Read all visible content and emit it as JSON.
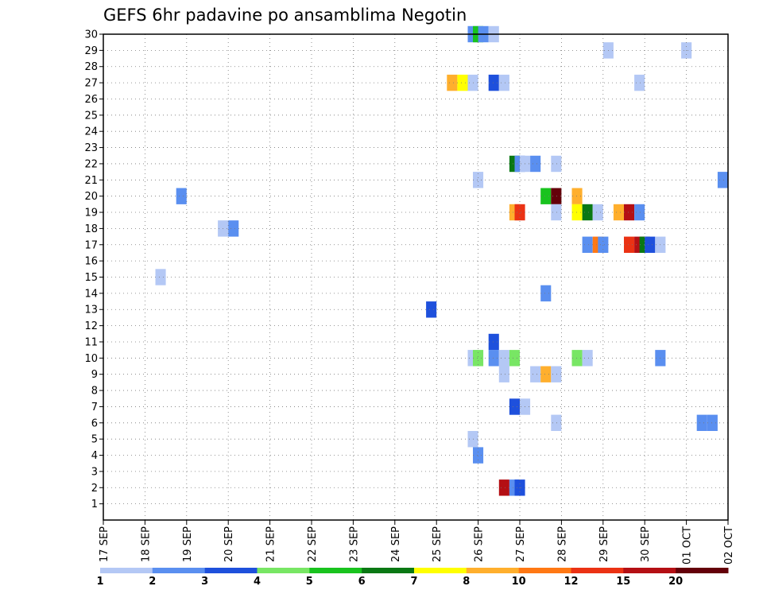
{
  "chart_data": {
    "type": "heatmap",
    "title": "GEFS 6hr padavine po ansamblima Negotin",
    "xlabel": "",
    "ylabel": "",
    "x_tick_labels": [
      "17 SEP",
      "18 SEP",
      "19 SEP",
      "20 SEP",
      "21 SEP",
      "22 SEP",
      "23 SEP",
      "24 SEP",
      "25 SEP",
      "26 SEP",
      "27 SEP",
      "28 SEP",
      "29 SEP",
      "30 SEP",
      "01 OCT",
      "02 OCT"
    ],
    "y_tick_labels": [
      "1",
      "2",
      "3",
      "4",
      "5",
      "6",
      "7",
      "8",
      "9",
      "10",
      "11",
      "12",
      "13",
      "14",
      "15",
      "16",
      "17",
      "18",
      "19",
      "20",
      "21",
      "22",
      "23",
      "24",
      "25",
      "26",
      "27",
      "28",
      "29",
      "30"
    ],
    "ylim": [
      0,
      30
    ],
    "grid": true,
    "time_step_hours": 6,
    "legend": {
      "position": "bottom",
      "labels": [
        "1",
        "2",
        "3",
        "4",
        "5",
        "6",
        "7",
        "8",
        "10",
        "12",
        "15",
        "20"
      ],
      "colors": [
        "#b4c8f5",
        "#5a8ff0",
        "#1e50dc",
        "#78e664",
        "#19c31e",
        "#0a7814",
        "#ffff00",
        "#ffaf2d",
        "#ff7814",
        "#eb3214",
        "#b40f14",
        "#64000a"
      ]
    },
    "cells": [
      {
        "member": 30,
        "date": "26 SEP",
        "hour": "-06",
        "class": 2
      },
      {
        "member": 30,
        "date": "26 SEP",
        "hour": "-00",
        "class": 5
      },
      {
        "member": 30,
        "date": "26 SEP",
        "hour": "+00",
        "class": 2
      },
      {
        "member": 30,
        "date": "26 SEP",
        "hour": "+06",
        "class": 1
      },
      {
        "member": 29,
        "date": "29 SEP",
        "hour": "+00",
        "class": 1
      },
      {
        "member": 29,
        "date": "01 OCT",
        "hour": "-00",
        "class": 1
      },
      {
        "member": 27,
        "date": "25 SEP",
        "hour": "+06",
        "class": 8
      },
      {
        "member": 27,
        "date": "25 SEP",
        "hour": "+12",
        "class": 7
      },
      {
        "member": 27,
        "date": "25 SEP",
        "hour": "+18",
        "class": 1
      },
      {
        "member": 27,
        "date": "26 SEP",
        "hour": "+06",
        "class": 3
      },
      {
        "member": 27,
        "date": "26 SEP",
        "hour": "+12",
        "class": 1
      },
      {
        "member": 27,
        "date": "29 SEP",
        "hour": "+18",
        "class": 1
      },
      {
        "member": 22,
        "date": "26 SEP",
        "hour": "+18",
        "class": 6
      },
      {
        "member": 22,
        "date": "27 SEP",
        "hour": "-00",
        "class": 2
      },
      {
        "member": 22,
        "date": "27 SEP",
        "hour": "+00",
        "class": 1
      },
      {
        "member": 22,
        "date": "27 SEP",
        "hour": "+06",
        "class": 2
      },
      {
        "member": 22,
        "date": "27 SEP",
        "hour": "+18",
        "class": 1
      },
      {
        "member": 21,
        "date": "26 SEP",
        "hour": "-00",
        "class": 1
      },
      {
        "member": 21,
        "date": "01 OCT",
        "hour": "+18",
        "class": 2
      },
      {
        "member": 20,
        "date": "18 SEP",
        "hour": "+18",
        "class": 2
      },
      {
        "member": 20,
        "date": "27 SEP",
        "hour": "+12",
        "class": 5
      },
      {
        "member": 20,
        "date": "27 SEP",
        "hour": "+18",
        "class": 12
      },
      {
        "member": 20,
        "date": "28 SEP",
        "hour": "+06",
        "class": 8
      },
      {
        "member": 19,
        "date": "26 SEP",
        "hour": "+18",
        "class": 8
      },
      {
        "member": 19,
        "date": "27 SEP",
        "hour": "-00",
        "class": 10
      },
      {
        "member": 19,
        "date": "27 SEP",
        "hour": "+18",
        "class": 1
      },
      {
        "member": 19,
        "date": "28 SEP",
        "hour": "+06",
        "class": 7
      },
      {
        "member": 19,
        "date": "28 SEP",
        "hour": "+12",
        "class": 6
      },
      {
        "member": 19,
        "date": "28 SEP",
        "hour": "+18",
        "class": 1
      },
      {
        "member": 19,
        "date": "29 SEP",
        "hour": "+06",
        "class": 8
      },
      {
        "member": 19,
        "date": "29 SEP",
        "hour": "+12",
        "class": 11
      },
      {
        "member": 19,
        "date": "29 SEP",
        "hour": "+18",
        "class": 2
      },
      {
        "member": 18,
        "date": "19 SEP",
        "hour": "+18",
        "class": 1
      },
      {
        "member": 18,
        "date": "20 SEP",
        "hour": "+00",
        "class": 2
      },
      {
        "member": 17,
        "date": "28 SEP",
        "hour": "+12",
        "class": 2
      },
      {
        "member": 17,
        "date": "28 SEP",
        "hour": "+18",
        "class": 9
      },
      {
        "member": 17,
        "date": "29 SEP",
        "hour": "-00",
        "class": 2
      },
      {
        "member": 17,
        "date": "29 SEP",
        "hour": "+12",
        "class": 10
      },
      {
        "member": 17,
        "date": "29 SEP",
        "hour": "+18",
        "class": 11
      },
      {
        "member": 17,
        "date": "30 SEP",
        "hour": "-00",
        "class": 6
      },
      {
        "member": 17,
        "date": "30 SEP",
        "hour": "+00",
        "class": 3
      },
      {
        "member": 17,
        "date": "30 SEP",
        "hour": "+06",
        "class": 1
      },
      {
        "member": 15,
        "date": "18 SEP",
        "hour": "+06",
        "class": 1
      },
      {
        "member": 14,
        "date": "27 SEP",
        "hour": "+12",
        "class": 2
      },
      {
        "member": 13,
        "date": "24 SEP",
        "hour": "+18",
        "class": 3
      },
      {
        "member": 11,
        "date": "26 SEP",
        "hour": "+06",
        "class": 3
      },
      {
        "member": 10,
        "date": "25 SEP",
        "hour": "+18",
        "class": 1
      },
      {
        "member": 10,
        "date": "26 SEP",
        "hour": "-00",
        "class": 4
      },
      {
        "member": 10,
        "date": "26 SEP",
        "hour": "+06",
        "class": 2
      },
      {
        "member": 10,
        "date": "26 SEP",
        "hour": "+12",
        "class": 1
      },
      {
        "member": 10,
        "date": "26 SEP",
        "hour": "+18",
        "class": 4
      },
      {
        "member": 10,
        "date": "28 SEP",
        "hour": "+06",
        "class": 4
      },
      {
        "member": 10,
        "date": "28 SEP",
        "hour": "+12",
        "class": 1
      },
      {
        "member": 10,
        "date": "30 SEP",
        "hour": "+06",
        "class": 2
      },
      {
        "member": 9,
        "date": "26 SEP",
        "hour": "+12",
        "class": 1
      },
      {
        "member": 9,
        "date": "27 SEP",
        "hour": "+06",
        "class": 1
      },
      {
        "member": 9,
        "date": "27 SEP",
        "hour": "+12",
        "class": 8
      },
      {
        "member": 9,
        "date": "27 SEP",
        "hour": "+18",
        "class": 1
      },
      {
        "member": 7,
        "date": "26 SEP",
        "hour": "+18",
        "class": 3
      },
      {
        "member": 7,
        "date": "27 SEP",
        "hour": "+00",
        "class": 1
      },
      {
        "member": 6,
        "date": "27 SEP",
        "hour": "+18",
        "class": 1
      },
      {
        "member": 6,
        "date": "01 OCT",
        "hour": "+06",
        "class": 2
      },
      {
        "member": 6,
        "date": "01 OCT",
        "hour": "+12",
        "class": 2
      },
      {
        "member": 5,
        "date": "25 SEP",
        "hour": "+18",
        "class": 1
      },
      {
        "member": 4,
        "date": "26 SEP",
        "hour": "-00",
        "class": 2
      },
      {
        "member": 2,
        "date": "26 SEP",
        "hour": "+12",
        "class": 11
      },
      {
        "member": 2,
        "date": "26 SEP",
        "hour": "+18",
        "class": 2
      },
      {
        "member": 2,
        "date": "27 SEP",
        "hour": "-00",
        "class": 3
      }
    ]
  }
}
